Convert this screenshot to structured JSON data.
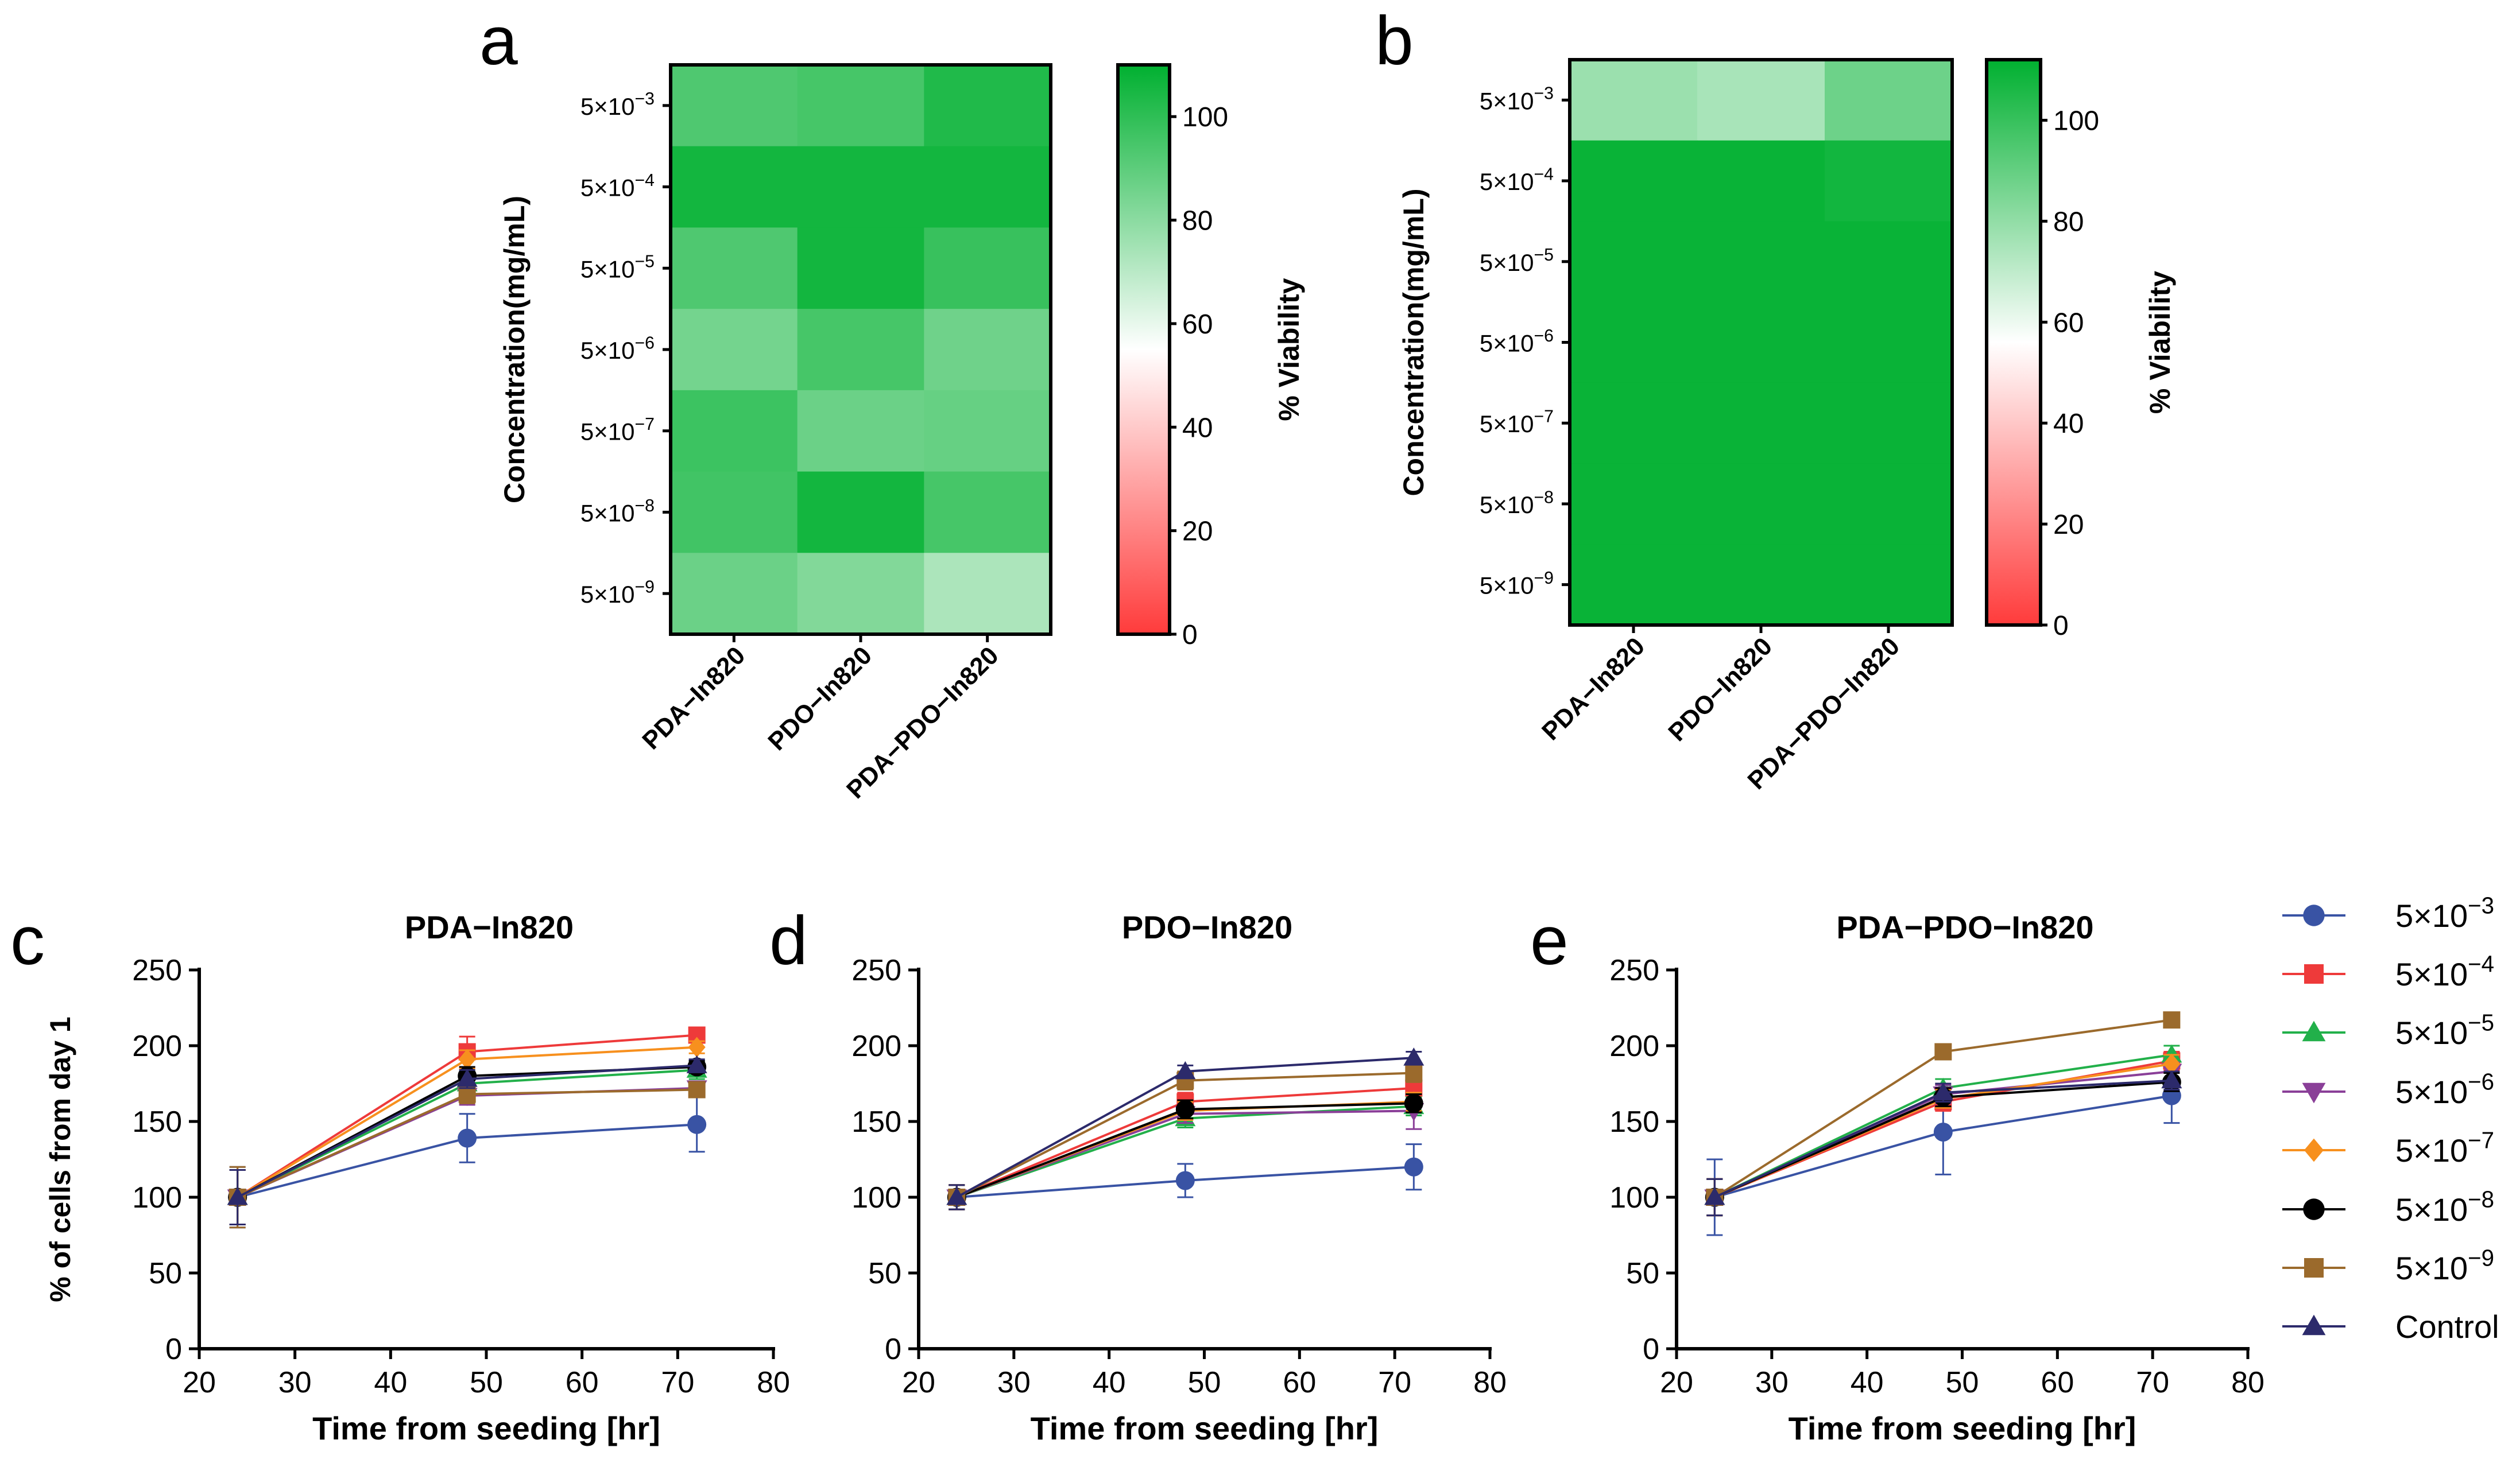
{
  "chart_data": [
    {
      "panel": "a",
      "type": "heatmap",
      "ylabel": "Concentration(mg/mL)",
      "colorbar_label": "% Viability",
      "colorbar_range": [
        0,
        110
      ],
      "colorbar_ticks": [
        "0",
        "20",
        "40",
        "60",
        "80",
        "100"
      ],
      "colorbar_colors": [
        "#ff3b3b",
        "#ffffff",
        "#00b030"
      ],
      "rows": [
        {
          "base": "5×10",
          "exp": "−3"
        },
        {
          "base": "5×10",
          "exp": "−4"
        },
        {
          "base": "5×10",
          "exp": "−5"
        },
        {
          "base": "5×10",
          "exp": "−6"
        },
        {
          "base": "5×10",
          "exp": "−7"
        },
        {
          "base": "5×10",
          "exp": "−8"
        },
        {
          "base": "5×10",
          "exp": "−9"
        }
      ],
      "columns": [
        "PDA−In820",
        "PDO−In820",
        "PDA−PDO−In820"
      ],
      "values": [
        [
          93,
          95,
          103
        ],
        [
          106,
          106,
          106
        ],
        [
          93,
          106,
          98
        ],
        [
          85,
          95,
          86
        ],
        [
          97,
          87,
          88
        ],
        [
          96,
          106,
          95
        ],
        [
          87,
          82,
          73
        ]
      ]
    },
    {
      "panel": "b",
      "type": "heatmap",
      "ylabel": "Concentration(mg/mL)",
      "colorbar_label": "% Viability",
      "colorbar_range": [
        0,
        112
      ],
      "colorbar_ticks": [
        "0",
        "20",
        "40",
        "60",
        "80",
        "100"
      ],
      "colorbar_colors": [
        "#ff3b3b",
        "#ffffff",
        "#00b030"
      ],
      "rows": [
        {
          "base": "5×10",
          "exp": "−3"
        },
        {
          "base": "5×10",
          "exp": "−4"
        },
        {
          "base": "5×10",
          "exp": "−5"
        },
        {
          "base": "5×10",
          "exp": "−6"
        },
        {
          "base": "5×10",
          "exp": "−7"
        },
        {
          "base": "5×10",
          "exp": "−8"
        },
        {
          "base": "5×10",
          "exp": "−9"
        }
      ],
      "columns": [
        "PDA−In820",
        "PDO−In820",
        "PDA−PDO−In820"
      ],
      "values": [
        [
          78,
          75,
          88
        ],
        [
          110,
          110,
          108
        ],
        [
          110,
          110,
          110
        ],
        [
          110,
          110,
          110
        ],
        [
          110,
          110,
          110
        ],
        [
          110,
          110,
          110
        ],
        [
          110,
          110,
          110
        ]
      ]
    },
    {
      "panel": "c",
      "type": "line",
      "title": "PDA−In820",
      "xlabel": "Time from seeding [hr]",
      "ylabel": "% of cells from day 1",
      "xlim": [
        20,
        80
      ],
      "ylim": [
        0,
        250
      ],
      "xticks": [
        20,
        30,
        40,
        50,
        60,
        70,
        80
      ],
      "yticks": [
        0,
        50,
        100,
        150,
        200,
        250
      ],
      "x": [
        24,
        48,
        72
      ],
      "series": [
        {
          "name": "5×10⁻³",
          "values": [
            100,
            139,
            148
          ],
          "err": [
            20,
            16,
            18
          ]
        },
        {
          "name": "5×10⁻⁴",
          "values": [
            100,
            196,
            207
          ],
          "err": [
            18,
            10,
            4
          ]
        },
        {
          "name": "5×10⁻⁵",
          "values": [
            100,
            175,
            184
          ],
          "err": [
            18,
            8,
            6
          ]
        },
        {
          "name": "5×10⁻⁶",
          "values": [
            100,
            167,
            172
          ],
          "err": [
            18,
            6,
            4
          ]
        },
        {
          "name": "5×10⁻⁷",
          "values": [
            100,
            191,
            199
          ],
          "err": [
            18,
            6,
            4
          ]
        },
        {
          "name": "5×10⁻⁸",
          "values": [
            100,
            180,
            186
          ],
          "err": [
            18,
            6,
            4
          ]
        },
        {
          "name": "5×10⁻⁹",
          "values": [
            100,
            168,
            171
          ],
          "err": [
            20,
            6,
            4
          ]
        },
        {
          "name": "Control",
          "values": [
            100,
            178,
            187
          ],
          "err": [
            18,
            6,
            4
          ]
        }
      ]
    },
    {
      "panel": "d",
      "type": "line",
      "title": "PDO−In820",
      "xlabel": "Time from seeding [hr]",
      "ylabel": "",
      "xlim": [
        20,
        80
      ],
      "ylim": [
        0,
        250
      ],
      "xticks": [
        20,
        30,
        40,
        50,
        60,
        70,
        80
      ],
      "yticks": [
        0,
        50,
        100,
        150,
        200,
        250
      ],
      "x": [
        24,
        48,
        72
      ],
      "series": [
        {
          "name": "5×10⁻³",
          "values": [
            100,
            111,
            120
          ],
          "err": [
            8,
            11,
            15
          ]
        },
        {
          "name": "5×10⁻⁴",
          "values": [
            100,
            163,
            172
          ],
          "err": [
            8,
            6,
            6
          ]
        },
        {
          "name": "5×10⁻⁵",
          "values": [
            100,
            152,
            160
          ],
          "err": [
            8,
            6,
            6
          ]
        },
        {
          "name": "5×10⁻⁶",
          "values": [
            100,
            155,
            157
          ],
          "err": [
            8,
            6,
            12
          ]
        },
        {
          "name": "5×10⁻⁷",
          "values": [
            100,
            157,
            163
          ],
          "err": [
            8,
            6,
            6
          ]
        },
        {
          "name": "5×10⁻⁸",
          "values": [
            100,
            158,
            162
          ],
          "err": [
            8,
            6,
            6
          ]
        },
        {
          "name": "5×10⁻⁹",
          "values": [
            100,
            177,
            182
          ],
          "err": [
            8,
            6,
            6
          ]
        },
        {
          "name": "Control",
          "values": [
            100,
            183,
            192
          ],
          "err": [
            8,
            4,
            4
          ]
        }
      ]
    },
    {
      "panel": "e",
      "type": "line",
      "title": "PDA−PDO−In820",
      "xlabel": "Time from seeding [hr]",
      "ylabel": "",
      "xlim": [
        20,
        80
      ],
      "ylim": [
        0,
        250
      ],
      "xticks": [
        20,
        30,
        40,
        50,
        60,
        70,
        80
      ],
      "yticks": [
        0,
        50,
        100,
        150,
        200,
        250
      ],
      "x": [
        24,
        48,
        72
      ],
      "series": [
        {
          "name": "5×10⁻³",
          "values": [
            100,
            143,
            167
          ],
          "err": [
            25,
            28,
            18
          ]
        },
        {
          "name": "5×10⁻⁴",
          "values": [
            100,
            163,
            190
          ],
          "err": [
            12,
            6,
            6
          ]
        },
        {
          "name": "5×10⁻⁵",
          "values": [
            100,
            172,
            194
          ],
          "err": [
            12,
            6,
            6
          ]
        },
        {
          "name": "5×10⁻⁶",
          "values": [
            100,
            168,
            183
          ],
          "err": [
            12,
            6,
            6
          ]
        },
        {
          "name": "5×10⁻⁷",
          "values": [
            100,
            165,
            188
          ],
          "err": [
            12,
            6,
            6
          ]
        },
        {
          "name": "5×10⁻⁸",
          "values": [
            100,
            166,
            176
          ],
          "err": [
            12,
            6,
            6
          ]
        },
        {
          "name": "5×10⁻⁹",
          "values": [
            100,
            196,
            217
          ],
          "err": [
            12,
            4,
            4
          ]
        },
        {
          "name": "Control",
          "values": [
            100,
            169,
            177
          ],
          "err": [
            12,
            6,
            6
          ]
        }
      ]
    }
  ],
  "panel_letters": {
    "a": "a",
    "b": "b",
    "c": "c",
    "d": "d",
    "e": "e"
  },
  "legend": {
    "entries": [
      {
        "base": "5×10",
        "exp": "−3",
        "color": "#3953a4",
        "marker": "circle"
      },
      {
        "base": "5×10",
        "exp": "−4",
        "color": "#ee3a3a",
        "marker": "square"
      },
      {
        "base": "5×10",
        "exp": "−5",
        "color": "#22b04a",
        "marker": "triangle-up"
      },
      {
        "base": "5×10",
        "exp": "−6",
        "color": "#8a3f98",
        "marker": "triangle-down"
      },
      {
        "base": "5×10",
        "exp": "−7",
        "color": "#f7901e",
        "marker": "diamond"
      },
      {
        "base": "5×10",
        "exp": "−8",
        "color": "#000000",
        "marker": "circle"
      },
      {
        "base": "5×10",
        "exp": "−9",
        "color": "#9b6a2c",
        "marker": "square"
      },
      {
        "base": "Control",
        "exp": "",
        "color": "#2c2a6b",
        "marker": "triangle-up"
      }
    ]
  }
}
